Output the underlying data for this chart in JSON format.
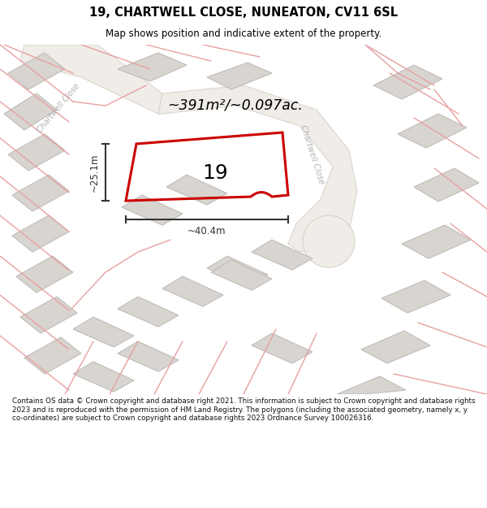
{
  "title": "19, CHARTWELL CLOSE, NUNEATON, CV11 6SL",
  "subtitle": "Map shows position and indicative extent of the property.",
  "area_text": "~391m²/~0.097ac.",
  "dim_width": "~40.4m",
  "dim_height": "~25.1m",
  "label_19": "19",
  "road_label_1": "Chartwell Close",
  "road_label_2": "Chartwell Close",
  "footer": "Contains OS data © Crown copyright and database right 2021. This information is subject to Crown copyright and database rights 2023 and is reproduced with the permission of HM Land Registry. The polygons (including the associated geometry, namely x, y co-ordinates) are subject to Crown copyright and database rights 2023 Ordnance Survey 100026316.",
  "bg_color": "#ffffff",
  "map_bg": "#f7f5f2",
  "building_fill": "#d8d5d0",
  "building_stroke": "#c0bcb8",
  "road_fill": "#ffffff",
  "parcel_line": "#e8a0a0",
  "road_edge": "#d0c8c0",
  "highlight_color": "#cc0000",
  "dim_color": "#333333",
  "title_color": "#000000",
  "footer_color": "#111111",
  "road_label_color": "#b0b0b0"
}
